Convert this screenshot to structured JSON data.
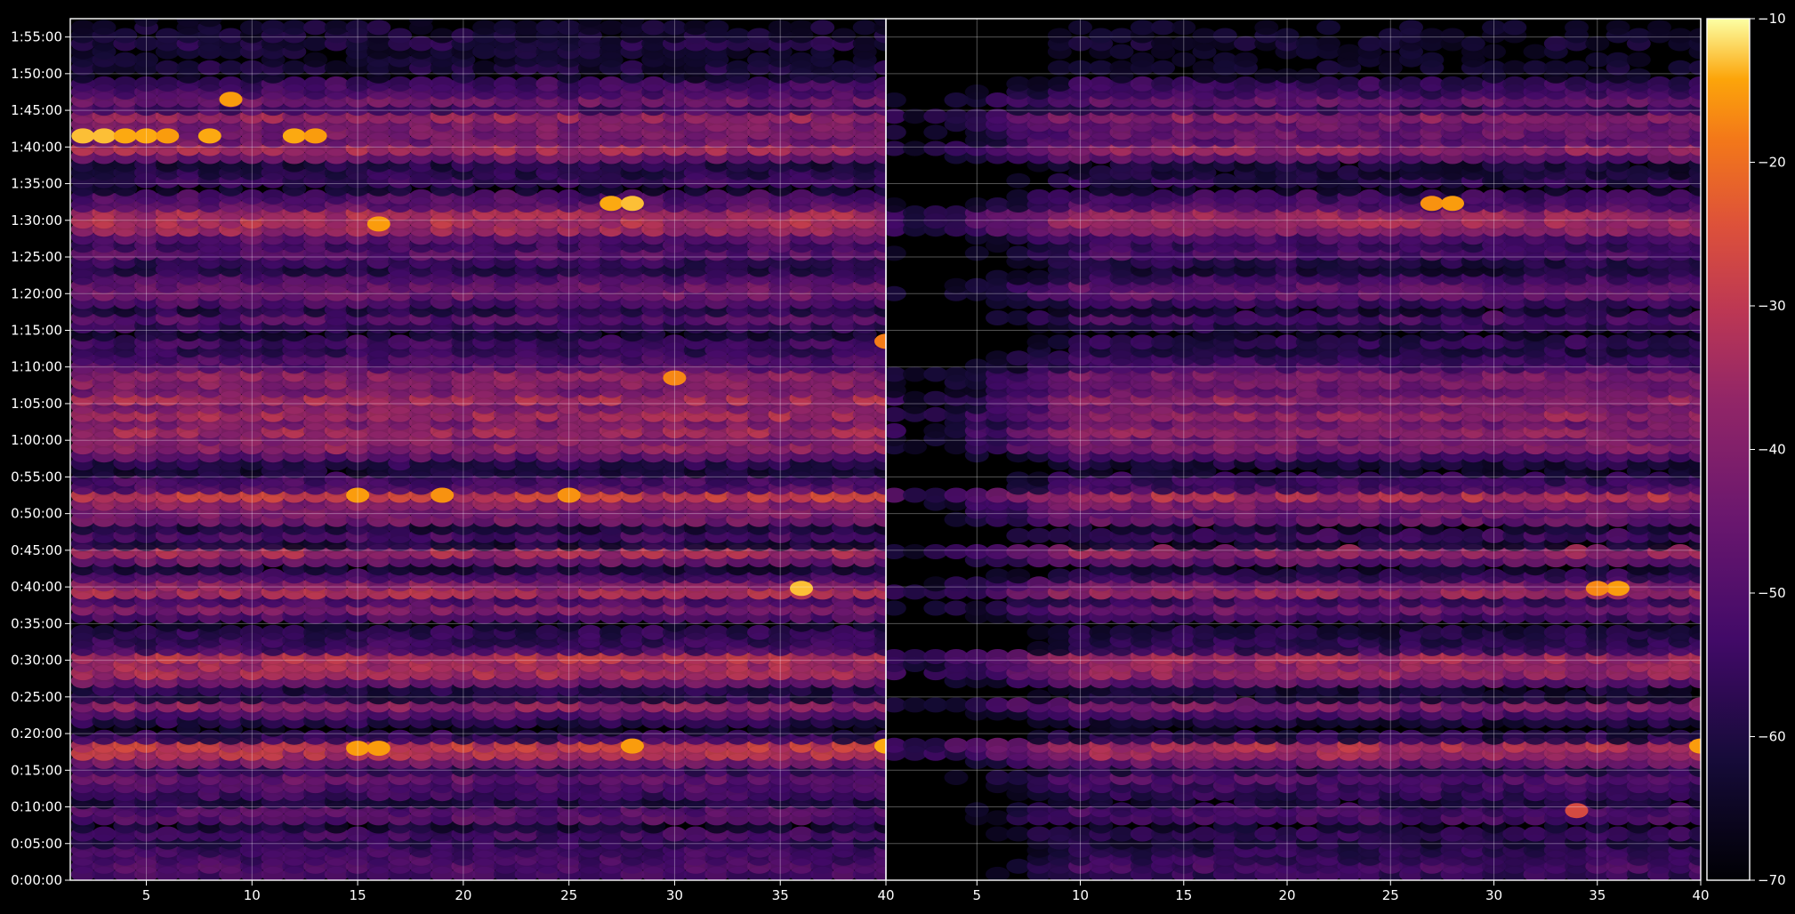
{
  "chart_data": {
    "type": "heatmap",
    "title": "",
    "xlabel": "",
    "ylabel": "",
    "colormap": "inferno",
    "background": "#000000",
    "grid": true,
    "panels": [
      {
        "name": "",
        "xlim": [
          1.4,
          40
        ],
        "x_ticks": [
          5,
          10,
          15,
          20,
          25,
          30,
          35
        ],
        "x_tick_labels": [
          "5",
          "10",
          "15",
          "20",
          "25",
          "30",
          "35"
        ]
      },
      {
        "name": "",
        "xlim": [
          0.6,
          40
        ],
        "x_ticks": [
          5,
          10,
          15,
          20,
          25,
          30,
          35,
          40
        ],
        "x_tick_labels": [
          "5",
          "10",
          "15",
          "20",
          "25",
          "30",
          "35",
          "40"
        ]
      }
    ],
    "shared_boundary_label": "40",
    "y_axis": {
      "unit": "h:mm:ss",
      "range_minutes": [
        0,
        117.5
      ],
      "tick_minutes": [
        0,
        5,
        10,
        15,
        20,
        25,
        30,
        35,
        40,
        45,
        50,
        55,
        60,
        65,
        70,
        75,
        80,
        85,
        90,
        95,
        100,
        105,
        110,
        115
      ],
      "tick_labels": [
        "0:00:00",
        "0:05:00",
        "0:10:00",
        "0:15:00",
        "0:20:00",
        "0:25:00",
        "0:30:00",
        "0:35:00",
        "0:40:00",
        "0:45:00",
        "0:50:00",
        "0:55:00",
        "1:00:00",
        "1:05:00",
        "1:10:00",
        "1:15:00",
        "1:20:00",
        "1:25:00",
        "1:30:00",
        "1:35:00",
        "1:40:00",
        "1:45:00",
        "1:50:00",
        "1:55:00"
      ]
    },
    "colorbar": {
      "range": [
        -70,
        -10
      ],
      "ticks": [
        -10,
        -20,
        -30,
        -40,
        -50,
        -60,
        -70
      ],
      "tick_labels": [
        "-10",
        "-20",
        "-30",
        "-40",
        "-50",
        "-60",
        "-70"
      ]
    },
    "bands_minutes": [
      {
        "t": 1.5,
        "level": -42
      },
      {
        "t": 3.5,
        "level": -44
      },
      {
        "t": 6,
        "level": -46
      },
      {
        "t": 9,
        "level": -40
      },
      {
        "t": 12.5,
        "level": -43
      },
      {
        "t": 14,
        "level": -42
      },
      {
        "t": 18,
        "level": -22
      },
      {
        "t": 19,
        "level": -47
      },
      {
        "t": 24.3,
        "level": -30
      },
      {
        "t": 25.5,
        "level": -50
      },
      {
        "t": 28.8,
        "level": -25
      },
      {
        "t": 30.3,
        "level": -26
      },
      {
        "t": 32,
        "level": -45
      },
      {
        "t": 33.5,
        "level": -50
      },
      {
        "t": 37,
        "level": -36
      },
      {
        "t": 39.5,
        "level": -27
      },
      {
        "t": 41.5,
        "level": -48
      },
      {
        "t": 44.8,
        "level": -30
      },
      {
        "t": 47,
        "level": -47
      },
      {
        "t": 49.8,
        "level": -33
      },
      {
        "t": 52.5,
        "level": -25
      },
      {
        "t": 54,
        "level": -42
      },
      {
        "t": 59.5,
        "level": -30
      },
      {
        "t": 61.5,
        "level": -29
      },
      {
        "t": 63.5,
        "level": -30
      },
      {
        "t": 65.5,
        "level": -28
      },
      {
        "t": 67.5,
        "level": -32
      },
      {
        "t": 68.8,
        "level": -33
      },
      {
        "t": 71.5,
        "level": -44
      },
      {
        "t": 73,
        "level": -46
      },
      {
        "t": 76.5,
        "level": -43
      },
      {
        "t": 78.8,
        "level": -46
      },
      {
        "t": 80.5,
        "level": -35
      },
      {
        "t": 82,
        "level": -45
      },
      {
        "t": 84,
        "level": -48
      },
      {
        "t": 85.8,
        "level": -41
      },
      {
        "t": 87.5,
        "level": -42
      },
      {
        "t": 89.5,
        "level": -25
      },
      {
        "t": 91,
        "level": -30
      },
      {
        "t": 92.5,
        "level": -40
      },
      {
        "t": 95.5,
        "level": -50
      },
      {
        "t": 97,
        "level": -50
      },
      {
        "t": 99.8,
        "level": -30
      },
      {
        "t": 102,
        "level": -38
      },
      {
        "t": 104,
        "level": -30
      },
      {
        "t": 106.5,
        "level": -38
      },
      {
        "t": 108.5,
        "level": -48
      },
      {
        "t": 110.5,
        "level": -54
      },
      {
        "t": 112.5,
        "level": -55
      },
      {
        "t": 114.5,
        "level": -52
      },
      {
        "t": 116.5,
        "level": -57
      }
    ],
    "hot_spots": [
      {
        "panel": 0,
        "x": 2,
        "t": 101.5,
        "level": -13
      },
      {
        "panel": 0,
        "x": 3,
        "t": 101.5,
        "level": -13
      },
      {
        "panel": 0,
        "x": 4,
        "t": 101.5,
        "level": -14
      },
      {
        "panel": 0,
        "x": 5,
        "t": 101.5,
        "level": -14
      },
      {
        "panel": 0,
        "x": 6,
        "t": 101.5,
        "level": -15
      },
      {
        "panel": 0,
        "x": 8,
        "t": 101.5,
        "level": -14
      },
      {
        "panel": 0,
        "x": 9,
        "t": 106.5,
        "level": -15
      },
      {
        "panel": 0,
        "x": 12,
        "t": 101.5,
        "level": -14
      },
      {
        "panel": 0,
        "x": 13,
        "t": 101.5,
        "level": -15
      },
      {
        "panel": 0,
        "x": 27,
        "t": 92.3,
        "level": -14
      },
      {
        "panel": 0,
        "x": 28,
        "t": 92.3,
        "level": -13
      },
      {
        "panel": 0,
        "x": 16,
        "t": 89.5,
        "level": -15
      },
      {
        "panel": 0,
        "x": 15,
        "t": 18,
        "level": -15
      },
      {
        "panel": 0,
        "x": 16,
        "t": 18,
        "level": -15
      },
      {
        "panel": 0,
        "x": 28,
        "t": 18.3,
        "level": -15
      },
      {
        "panel": 0,
        "x": 40,
        "t": 18.3,
        "level": -14
      },
      {
        "panel": 0,
        "x": 36,
        "t": 39.8,
        "level": -13
      },
      {
        "panel": 0,
        "x": 15,
        "t": 52.5,
        "level": -15
      },
      {
        "panel": 0,
        "x": 19,
        "t": 52.5,
        "level": -16
      },
      {
        "panel": 0,
        "x": 25,
        "t": 52.5,
        "level": -16
      },
      {
        "panel": 0,
        "x": 30,
        "t": 68.5,
        "level": -17
      },
      {
        "panel": 0,
        "x": 40,
        "t": 73.5,
        "level": -18
      },
      {
        "panel": 1,
        "x": 27,
        "t": 92.3,
        "level": -16
      },
      {
        "panel": 1,
        "x": 28,
        "t": 92.3,
        "level": -15
      },
      {
        "panel": 1,
        "x": 36,
        "t": 39.8,
        "level": -15
      },
      {
        "panel": 1,
        "x": 40,
        "t": 18.3,
        "level": -15
      },
      {
        "panel": 1,
        "x": 35,
        "t": 39.8,
        "level": -17
      },
      {
        "panel": 1,
        "x": 34,
        "t": 9.5,
        "level": -26
      }
    ]
  }
}
